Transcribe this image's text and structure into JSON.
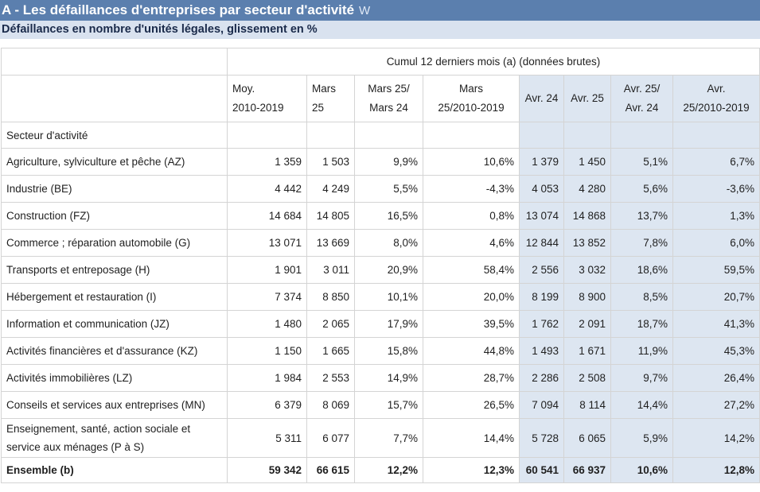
{
  "title": "A - Les défaillances d'entreprises par secteur d'activité",
  "title_icon": "w-logo-icon",
  "subtitle": "Défaillances en nombre d'unités légales, glissement en %",
  "table": {
    "group_header": "Cumul 12 derniers mois (a) (données brutes)",
    "columns": [
      {
        "line1": "Moy.",
        "line2": "2010-2019"
      },
      {
        "line1": "Mars",
        "line2": "25"
      },
      {
        "line1": "Mars 25/",
        "line2": "Mars 24"
      },
      {
        "line1": "Mars",
        "line2": "25/2010-2019"
      },
      {
        "line1": "Avr. 24",
        "line2": ""
      },
      {
        "line1": "Avr. 25",
        "line2": ""
      },
      {
        "line1": "Avr. 25/",
        "line2": "Avr. 24"
      },
      {
        "line1": "Avr.",
        "line2": "25/2010-2019"
      }
    ],
    "sector_label": "Secteur d'activité",
    "rows": [
      {
        "label": "Agriculture, sylviculture et pêche (AZ)",
        "values": [
          "1 359",
          "1 503",
          "9,9%",
          "10,6%",
          "1 379",
          "1 450",
          "5,1%",
          "6,7%"
        ]
      },
      {
        "label": "Industrie (BE)",
        "values": [
          "4 442",
          "4 249",
          "5,5%",
          "-4,3%",
          "4 053",
          "4 280",
          "5,6%",
          "-3,6%"
        ]
      },
      {
        "label": "Construction (FZ)",
        "values": [
          "14 684",
          "14 805",
          "16,5%",
          "0,8%",
          "13 074",
          "14 868",
          "13,7%",
          "1,3%"
        ]
      },
      {
        "label": "Commerce ; réparation automobile (G)",
        "values": [
          "13 071",
          "13 669",
          "8,0%",
          "4,6%",
          "12 844",
          "13 852",
          "7,8%",
          "6,0%"
        ]
      },
      {
        "label": "Transports et entreposage (H)",
        "values": [
          "1 901",
          "3 011",
          "20,9%",
          "58,4%",
          "2 556",
          "3 032",
          "18,6%",
          "59,5%"
        ]
      },
      {
        "label": "Hébergement et restauration (I)",
        "values": [
          "7 374",
          "8 850",
          "10,1%",
          "20,0%",
          "8 199",
          "8 900",
          "8,5%",
          "20,7%"
        ]
      },
      {
        "label": "Information et communication (JZ)",
        "values": [
          "1 480",
          "2 065",
          "17,9%",
          "39,5%",
          "1 762",
          "2 091",
          "18,7%",
          "41,3%"
        ]
      },
      {
        "label": "Activités financières et d'assurance (KZ)",
        "values": [
          "1 150",
          "1 665",
          "15,8%",
          "44,8%",
          "1 493",
          "1 671",
          "11,9%",
          "45,3%"
        ]
      },
      {
        "label": "Activités immobilières (LZ)",
        "values": [
          "1 984",
          "2 553",
          "14,9%",
          "28,7%",
          "2 286",
          "2 508",
          "9,7%",
          "26,4%"
        ]
      },
      {
        "label": "Conseils et services aux entreprises (MN)",
        "values": [
          "6 379",
          "8 069",
          "15,7%",
          "26,5%",
          "7 094",
          "8 114",
          "14,4%",
          "27,2%"
        ]
      },
      {
        "label_line1": "Enseignement, santé, action sociale et",
        "label_line2": "service aux ménages (P à S)",
        "values": [
          "5 311",
          "6 077",
          "7,7%",
          "14,4%",
          "5 728",
          "6 065",
          "5,9%",
          "14,2%"
        ]
      }
    ],
    "total": {
      "label": "Ensemble (b)",
      "values": [
        "59 342",
        "66 615",
        "12,2%",
        "12,3%",
        "60 541",
        "66 937",
        "10,6%",
        "12,8%"
      ]
    }
  }
}
